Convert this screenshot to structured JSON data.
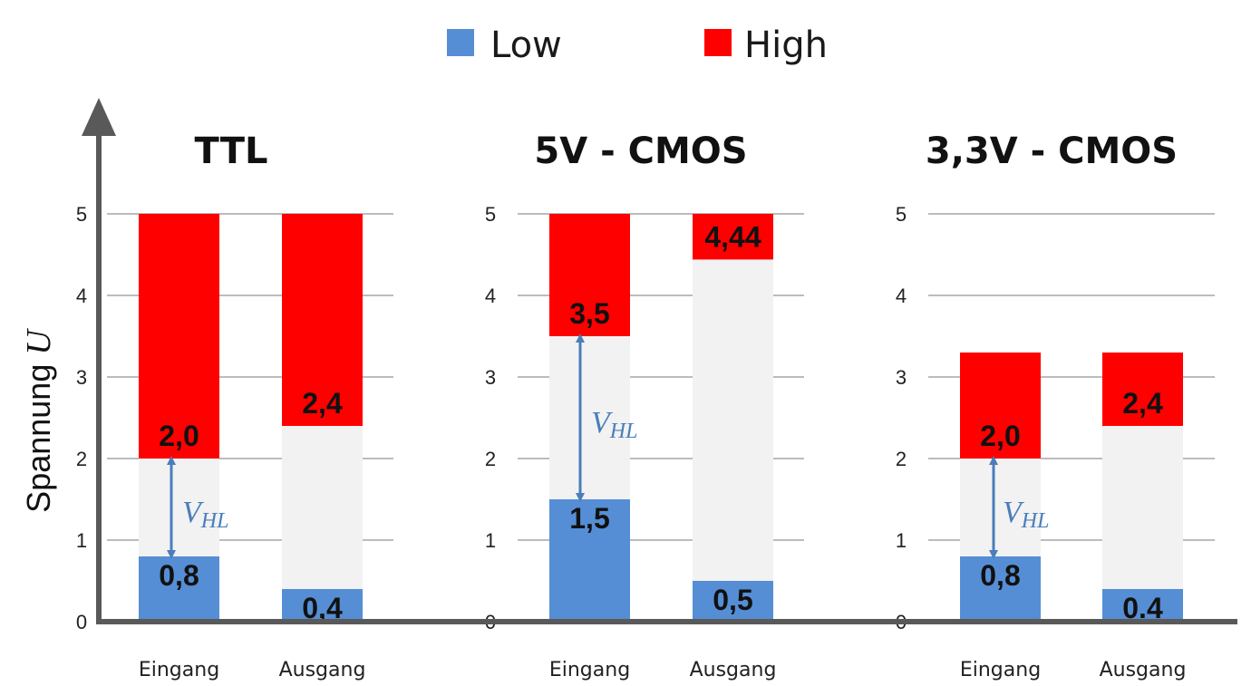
{
  "colors": {
    "low": "#558ed5",
    "high": "#ff0000",
    "middle": "#f2f2f2",
    "axis": "#595959",
    "grid": "#a6a6a6",
    "arrow": "#4a7ebb"
  },
  "chart_data": {
    "type": "bar",
    "legend": [
      {
        "key": "low",
        "label": "Low"
      },
      {
        "key": "high",
        "label": "High"
      }
    ],
    "legend_position": "top-center",
    "ylabel": "Spannung ",
    "ylabel_symbol": "U",
    "yticks": [
      "0",
      "1",
      "2",
      "3",
      "4",
      "5"
    ],
    "ylim": [
      0,
      5
    ],
    "grid": true,
    "categories": [
      "Eingang",
      "Ausgang"
    ],
    "panels": [
      {
        "title": "TTL",
        "supply": 5,
        "bars": [
          {
            "category": "Eingang",
            "low_max": 0.8,
            "high_min": 2.0,
            "low_label": "0,8",
            "high_label": "2,0"
          },
          {
            "category": "Ausgang",
            "low_max": 0.4,
            "high_min": 2.4,
            "low_label": "0,4",
            "high_label": "2,4"
          }
        ],
        "annotation": {
          "main": "V",
          "sub": "HL",
          "from": 0.8,
          "to": 2.0
        }
      },
      {
        "title": "5V - CMOS",
        "supply": 5,
        "bars": [
          {
            "category": "Eingang",
            "low_max": 1.5,
            "high_min": 3.5,
            "low_label": "1,5",
            "high_label": "3,5"
          },
          {
            "category": "Ausgang",
            "low_max": 0.5,
            "high_min": 4.44,
            "low_label": "0,5",
            "high_label": "4,44"
          }
        ],
        "annotation": {
          "main": "V",
          "sub": "HL",
          "from": 1.5,
          "to": 3.5
        }
      },
      {
        "title": "3,3V - CMOS",
        "supply": 3.3,
        "bars": [
          {
            "category": "Eingang",
            "low_max": 0.8,
            "high_min": 2.0,
            "low_label": "0,8",
            "high_label": "2,0"
          },
          {
            "category": "Ausgang",
            "low_max": 0.4,
            "high_min": 2.4,
            "low_label": "0.4",
            "high_label": "2,4"
          }
        ],
        "annotation": {
          "main": "V",
          "sub": "HL",
          "from": 0.8,
          "to": 2.0
        }
      }
    ]
  }
}
